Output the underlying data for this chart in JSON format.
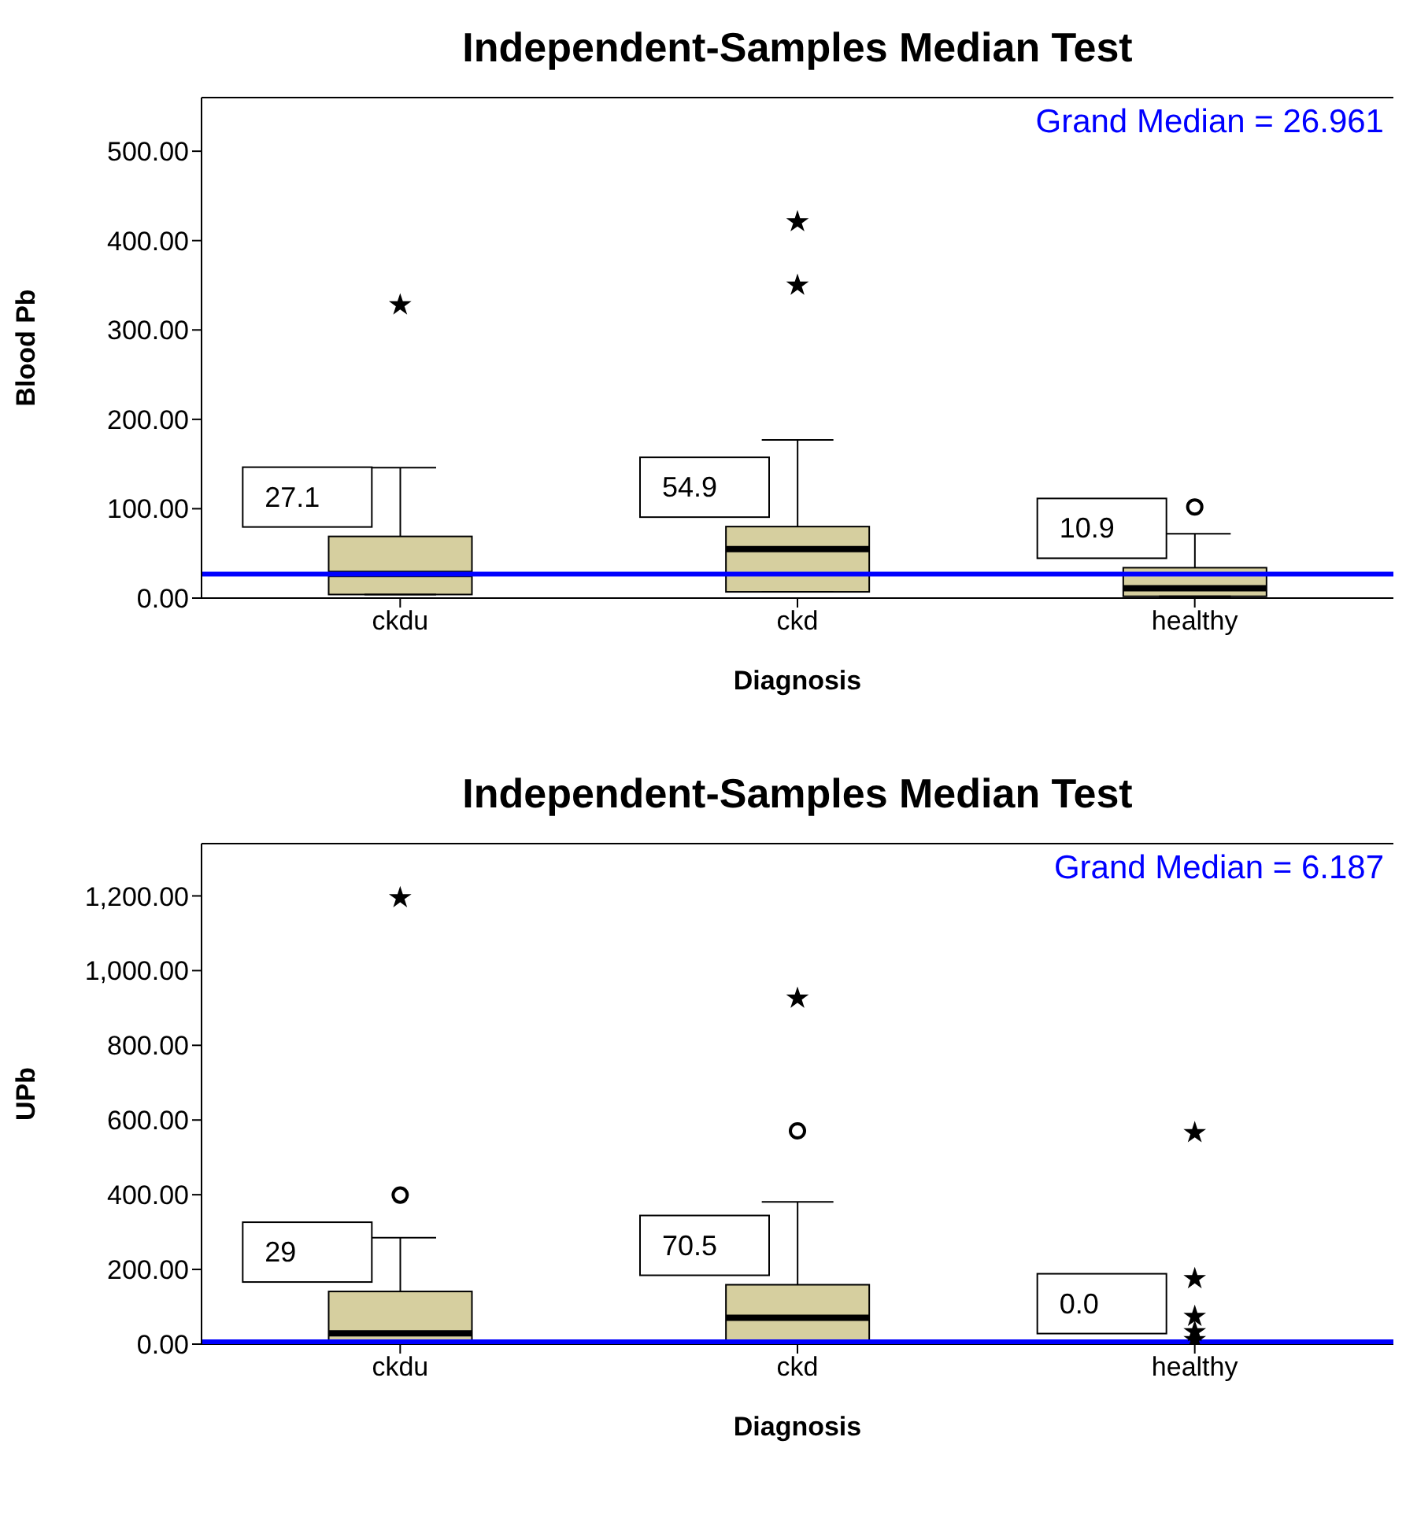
{
  "chart_data": [
    {
      "type": "box",
      "title": "Independent-Samples Median Test",
      "xlabel": "Diagnosis",
      "ylabel": "Blood Pb",
      "categories": [
        "ckdu",
        "ckd",
        "healthy"
      ],
      "color": "#d6cf9f",
      "boxes": [
        {
          "low": 4,
          "q1": 4,
          "median": 27.1,
          "q3": 69,
          "high": 146
        },
        {
          "low": 7,
          "q1": 7,
          "median": 54.9,
          "q3": 80,
          "high": 177
        },
        {
          "low": 2,
          "q1": 2,
          "median": 10.9,
          "q3": 34,
          "high": 72,
          "outliers": [
            102
          ]
        }
      ],
      "series": [
        {
          "type": "scatter",
          "marker": "star",
          "color": "#000000",
          "x": [
            "ckdu",
            "ckd",
            "ckd"
          ],
          "values": [
            328,
            421,
            350
          ]
        }
      ],
      "ylim": [
        0,
        560
      ],
      "yticks": [
        {
          "value": 0,
          "label": "0.00"
        },
        {
          "value": 100,
          "label": "100.00"
        },
        {
          "value": 200,
          "label": "200.00"
        },
        {
          "value": 300,
          "label": "300.00"
        },
        {
          "value": 400,
          "label": "400.00"
        },
        {
          "value": 500,
          "label": "500.00"
        }
      ],
      "ref_lines": [
        {
          "axis": "y",
          "value": 26.961,
          "color": "#0000ff"
        }
      ],
      "annotations": [
        "27.1",
        "54.9",
        "10.9",
        "Grand Median = 26.961"
      ],
      "grid": false,
      "legend": false
    },
    {
      "type": "box",
      "title": "Independent-Samples Median Test",
      "xlabel": "Diagnosis",
      "ylabel": "UPb",
      "categories": [
        "ckdu",
        "ckd",
        "healthy"
      ],
      "color": "#d6cf9f",
      "boxes": [
        {
          "low": 10,
          "q1": 10,
          "median": 29,
          "q3": 141,
          "high": 285,
          "outliers": [
            399
          ]
        },
        {
          "low": 10,
          "q1": 10,
          "median": 70.5,
          "q3": 159,
          "high": 381,
          "outliers": [
            571
          ]
        },
        {
          "low": 0,
          "q1": 0,
          "median": 0.0,
          "q3": 3,
          "high": 5
        }
      ],
      "series": [
        {
          "type": "scatter",
          "marker": "star",
          "color": "#000000",
          "x": [
            "ckdu",
            "ckd",
            "healthy",
            "healthy",
            "healthy",
            "healthy",
            "healthy"
          ],
          "values": [
            1195,
            926,
            566,
            175,
            74,
            33,
            12
          ]
        }
      ],
      "ylim": [
        0,
        1340
      ],
      "yticks": [
        {
          "value": 0,
          "label": "0.00"
        },
        {
          "value": 200,
          "label": "200.00"
        },
        {
          "value": 400,
          "label": "400.00"
        },
        {
          "value": 600,
          "label": "600.00"
        },
        {
          "value": 800,
          "label": "800.00"
        },
        {
          "value": 1000,
          "label": "1,000.00"
        },
        {
          "value": 1200,
          "label": "1,200.00"
        }
      ],
      "ref_lines": [
        {
          "axis": "y",
          "value": 6.187,
          "color": "#0000ff"
        }
      ],
      "annotations": [
        "29",
        "70.5",
        "0.0",
        "Grand Median = 6.187"
      ],
      "grid": false,
      "legend": false
    }
  ]
}
